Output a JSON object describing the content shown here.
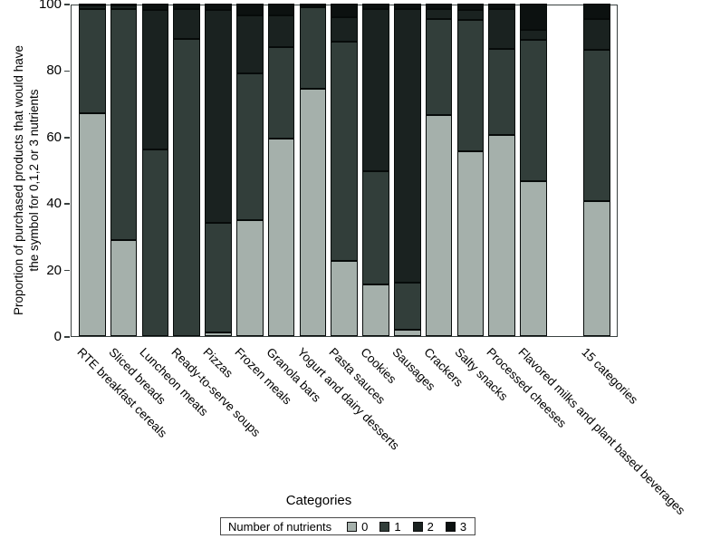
{
  "y_axis": {
    "title_line1": "Proportion of purchased products that would have",
    "title_line2": "the symbol for 0,1,2 or 3 nutrients",
    "ticks": [
      0,
      20,
      40,
      60,
      80,
      100
    ]
  },
  "x_axis": {
    "title": "Categories"
  },
  "legend": {
    "title": "Number of nutrients"
  },
  "colors": {
    "segment_0": "#a5b0ab",
    "segment_1": "#323e3a",
    "segment_2": "#1a2220",
    "segment_3": "#0c1110",
    "frame": "#3a4140",
    "background": "#ffffff"
  },
  "chart_data": {
    "type": "bar",
    "stacked": true,
    "orientation": "vertical",
    "grid": false,
    "ylim": [
      0,
      100
    ],
    "y_ticks": [
      0,
      20,
      40,
      60,
      80,
      100
    ],
    "xlabel": "Categories",
    "ylabel": "Proportion of purchased products that would have the symbol for 0,1,2 or 3 nutrients",
    "legend_title": "Number of nutrients",
    "legend_position": "bottom",
    "separated_last_category": true,
    "categories": [
      "RTE breakfast cereals",
      "Sliced breads",
      "Luncheon meats",
      "Ready-to-serve soups",
      "Pizzas",
      "Frozen meals",
      "Granola bars",
      "Yogurt and dairy desserts",
      "Pasta sauces",
      "Cookies",
      "Sausages",
      "Crackers",
      "Salty snacks",
      "Processed cheeses",
      "Flavored milks and plant based beverages",
      "15 categories"
    ],
    "series": [
      {
        "name": "0",
        "color": "#a5b0ab",
        "values": [
          67,
          29,
          0,
          0,
          1,
          35,
          59.5,
          74.5,
          22.5,
          15.5,
          2,
          66.5,
          55.5,
          60.5,
          46.5,
          40.5
        ]
      },
      {
        "name": "1",
        "color": "#323e3a",
        "values": [
          31.5,
          69.5,
          56,
          89.5,
          33,
          44,
          27.5,
          24.5,
          66,
          34,
          14,
          29,
          39.5,
          26,
          42.5,
          45.5
        ]
      },
      {
        "name": "2",
        "color": "#1a2220",
        "values": [
          1,
          1,
          42,
          9,
          64,
          17.5,
          9.5,
          0.5,
          7.5,
          49,
          82.5,
          3,
          3,
          12,
          3,
          9.5
        ]
      },
      {
        "name": "3",
        "color": "#0c1110",
        "values": [
          0.5,
          0.5,
          2,
          1.5,
          2,
          3.5,
          3.5,
          0.5,
          4,
          1.5,
          1.5,
          1.5,
          2,
          1.5,
          8,
          4.5
        ]
      }
    ]
  }
}
